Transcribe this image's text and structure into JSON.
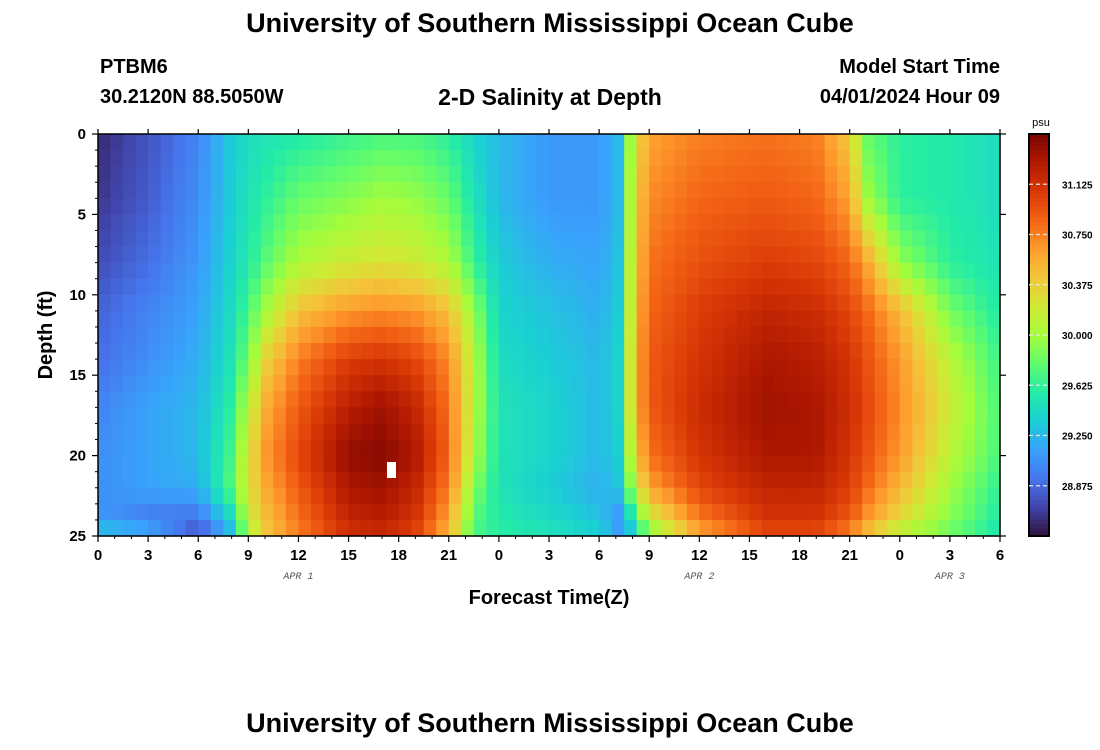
{
  "header": {
    "title": "University of Southern Mississippi Ocean Cube",
    "station_id": "PTBM6",
    "coords": "30.2120N  88.5050W",
    "plot_title": "2-D Salinity at Depth",
    "start_label": "Model Start Time",
    "start_value": "04/01/2024 Hour 09"
  },
  "footer": {
    "title": "University of Southern Mississippi Ocean Cube"
  },
  "chart_data": {
    "type": "heatmap",
    "title": "2-D Salinity at Depth",
    "xlabel": "Forecast Time(Z)",
    "ylabel": "Depth (ft)",
    "x_tick_labels": [
      "0",
      "3",
      "6",
      "9",
      "12",
      "15",
      "18",
      "21",
      "0",
      "3",
      "6",
      "9",
      "12",
      "15",
      "18",
      "21",
      "0",
      "3",
      "6"
    ],
    "x_day_labels": [
      {
        "label": "APR 1",
        "tick_index": 4
      },
      {
        "label": "APR 2",
        "tick_index": 12
      },
      {
        "label": "APR 3",
        "tick_index": 17
      }
    ],
    "x_range_hours": [
      0,
      54
    ],
    "y_tick_labels": [
      "0",
      "5",
      "10",
      "15",
      "20",
      "25"
    ],
    "y_range": [
      0,
      25
    ],
    "y_inverted": true,
    "colorbar": {
      "unit": "psu",
      "range": [
        28.5,
        31.5
      ],
      "tick_values": [
        28.875,
        29.25,
        29.625,
        30.0,
        30.375,
        30.75,
        31.125
      ],
      "tick_labels": [
        "28.875",
        "29.250",
        "29.625",
        "30.000",
        "30.375",
        "30.750",
        "31.125"
      ],
      "colormap": [
        "#30123b",
        "#4145ab",
        "#4675ed",
        "#39a2fc",
        "#1bcfd4",
        "#24eca6",
        "#61fc6c",
        "#a4fc3b",
        "#d1e834",
        "#f3c63a",
        "#fe9b2d",
        "#f36315",
        "#d93806",
        "#b11901",
        "#7a0402"
      ]
    },
    "salinity_psu": {
      "hours": [
        0,
        3,
        6,
        8,
        9,
        10,
        12,
        15,
        17,
        19,
        21,
        22.5,
        24,
        27,
        30,
        31.5,
        32,
        33,
        36,
        40,
        43,
        45,
        46,
        48,
        51,
        54
      ],
      "depths_ft": [
        0,
        4,
        8,
        11,
        14,
        17,
        20,
        22,
        24,
        25
      ],
      "values": [
        [
          28.6,
          28.78,
          29.0,
          29.35,
          29.45,
          29.5,
          29.55,
          29.65,
          29.7,
          29.7,
          29.6,
          29.4,
          29.25,
          29.1,
          29.1,
          29.3,
          30.2,
          30.6,
          30.75,
          30.8,
          30.75,
          30.4,
          29.8,
          29.6,
          29.55,
          29.45
        ],
        [
          28.65,
          28.82,
          29.05,
          29.35,
          29.5,
          29.6,
          29.8,
          29.9,
          30.0,
          29.95,
          29.8,
          29.5,
          29.25,
          29.1,
          29.1,
          29.3,
          30.3,
          30.7,
          30.85,
          30.9,
          30.85,
          30.6,
          30.0,
          29.6,
          29.55,
          29.45
        ],
        [
          28.75,
          28.9,
          29.1,
          29.4,
          29.55,
          29.75,
          30.05,
          30.2,
          30.25,
          30.2,
          30.05,
          29.65,
          29.35,
          29.2,
          29.15,
          29.35,
          30.35,
          30.8,
          30.95,
          31.05,
          31.0,
          30.85,
          30.6,
          29.95,
          29.6,
          29.5
        ],
        [
          28.85,
          29.0,
          29.15,
          29.45,
          29.7,
          30.0,
          30.45,
          30.65,
          30.7,
          30.65,
          30.45,
          29.95,
          29.4,
          29.3,
          29.2,
          29.4,
          30.4,
          30.85,
          31.05,
          31.2,
          31.15,
          31.0,
          30.85,
          30.5,
          29.85,
          29.55
        ],
        [
          28.9,
          29.05,
          29.2,
          29.5,
          29.85,
          30.35,
          30.75,
          31.05,
          31.1,
          31.0,
          30.7,
          30.1,
          29.45,
          29.35,
          29.25,
          29.45,
          30.45,
          30.9,
          31.1,
          31.3,
          31.25,
          31.1,
          30.95,
          30.65,
          30.1,
          29.65
        ],
        [
          29.0,
          29.15,
          29.25,
          29.6,
          30.1,
          30.55,
          30.9,
          31.25,
          31.35,
          31.2,
          30.8,
          30.1,
          29.5,
          29.4,
          29.25,
          29.45,
          30.45,
          30.9,
          31.15,
          31.35,
          31.3,
          31.15,
          31.0,
          30.7,
          30.2,
          29.7
        ],
        [
          29.05,
          29.15,
          29.25,
          29.7,
          30.25,
          30.65,
          31.0,
          31.4,
          31.45,
          31.3,
          30.85,
          30.05,
          29.5,
          29.4,
          29.25,
          29.4,
          30.3,
          30.8,
          31.1,
          31.3,
          31.3,
          31.1,
          30.95,
          30.65,
          30.1,
          29.7
        ],
        [
          29.05,
          29.15,
          29.2,
          29.75,
          30.25,
          30.55,
          30.9,
          31.3,
          31.35,
          31.2,
          30.75,
          29.9,
          29.5,
          29.35,
          29.2,
          29.35,
          30.05,
          30.6,
          31.0,
          31.2,
          31.2,
          31.05,
          30.85,
          30.5,
          30.0,
          29.6
        ],
        [
          29.1,
          28.95,
          28.9,
          29.4,
          30.15,
          30.45,
          30.8,
          31.2,
          31.25,
          31.1,
          30.6,
          29.75,
          29.55,
          29.45,
          29.3,
          29.0,
          29.55,
          30.15,
          30.75,
          31.1,
          31.1,
          30.9,
          30.65,
          30.3,
          29.9,
          29.55
        ],
        [
          29.4,
          29.3,
          28.75,
          29.2,
          30.0,
          30.4,
          30.75,
          31.1,
          31.15,
          31.0,
          30.5,
          29.7,
          29.6,
          29.5,
          29.4,
          29.1,
          29.3,
          29.8,
          30.55,
          30.95,
          30.95,
          30.7,
          30.4,
          30.05,
          29.8,
          29.5
        ]
      ]
    }
  }
}
